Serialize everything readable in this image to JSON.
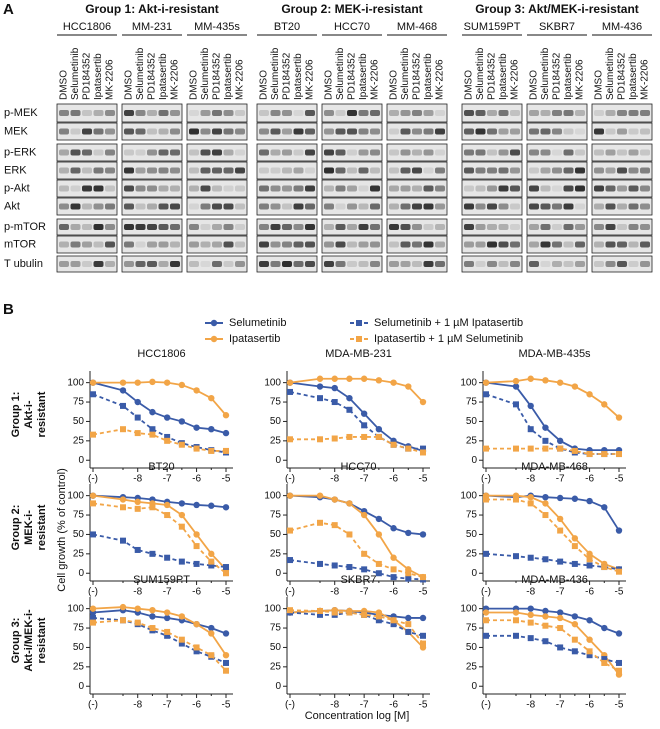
{
  "panel_a": {
    "label": "A",
    "groups": [
      {
        "title": "Group 1: Akt-i-resistant",
        "cell_lines": [
          "HCC1806",
          "MM-231",
          "MM-435s"
        ]
      },
      {
        "title": "Group 2: MEK-i-resistant",
        "cell_lines": [
          "BT20",
          "HCC70",
          "MM-468"
        ]
      },
      {
        "title": "Group 3: Akt/MEK-i-resistant",
        "cell_lines": [
          "SUM159PT",
          "SKBR7",
          "MM-436"
        ]
      }
    ],
    "lanes": [
      "DMSO",
      "Selumetinib",
      "PD184352",
      "Ipatasertib",
      "MK-2206"
    ],
    "proteins": [
      "p-MEK",
      "MEK",
      "p-ERK",
      "ERK",
      "p-Akt",
      "Akt",
      "p-mTOR",
      "mTOR",
      "T ubulin"
    ]
  },
  "panel_b": {
    "label": "B",
    "y_label": "Cell growth (% of control)",
    "x_label": "Concentration log [M]",
    "row_labels": [
      [
        "Group 1:",
        "Akt-i-",
        "resistant"
      ],
      [
        "Group 2:",
        "MEK-i-",
        "resistant"
      ],
      [
        "Group 3:",
        "Akt-i/MEK-i-",
        "resistant"
      ]
    ]
  },
  "chart_data": [
    {
      "type": "line",
      "title": "HCC1806",
      "categories": [
        "(-)",
        null,
        "-8",
        null,
        "-7",
        null,
        "-6",
        null,
        "-5"
      ],
      "ylim": [
        -10,
        115
      ],
      "yticks": [
        0,
        25,
        50,
        75,
        100
      ],
      "series": [
        {
          "name": "Selumetinib",
          "color": "#3a5ba8",
          "dashed": false,
          "marker": "circle",
          "values": [
            100,
            90,
            75,
            62,
            55,
            50,
            42,
            40,
            35
          ]
        },
        {
          "name": "Ipatasertib",
          "color": "#f2a547",
          "dashed": false,
          "marker": "circle",
          "values": [
            100,
            100,
            100,
            101,
            100,
            97,
            90,
            80,
            58
          ]
        },
        {
          "name": "Selumetinib + 1 µM Ipatasertib",
          "color": "#3a5ba8",
          "dashed": true,
          "marker": "square",
          "values": [
            85,
            70,
            55,
            40,
            30,
            22,
            17,
            13,
            10
          ]
        },
        {
          "name": "Ipatasertib + 1 µM Selumetinib",
          "color": "#f2a547",
          "dashed": true,
          "marker": "square",
          "values": [
            33,
            40,
            35,
            33,
            25,
            20,
            15,
            12,
            12
          ]
        }
      ]
    },
    {
      "type": "line",
      "title": "MDA-MB-231",
      "categories": [
        "(-)",
        null,
        "-8",
        null,
        "-7",
        null,
        "-6",
        null,
        "-5"
      ],
      "ylim": [
        -10,
        115
      ],
      "yticks": [
        0,
        25,
        50,
        75,
        100
      ],
      "series": [
        {
          "name": "Selumetinib",
          "color": "#3a5ba8",
          "dashed": false,
          "marker": "circle",
          "values": [
            100,
            95,
            93,
            80,
            60,
            40,
            25,
            18,
            12
          ]
        },
        {
          "name": "Ipatasertib",
          "color": "#f2a547",
          "dashed": false,
          "marker": "circle",
          "values": [
            100,
            105,
            105,
            105,
            105,
            103,
            100,
            95,
            75
          ]
        },
        {
          "name": "Selumetinib + 1 µM Ipatasertib",
          "color": "#3a5ba8",
          "dashed": true,
          "marker": "square",
          "values": [
            88,
            80,
            75,
            65,
            45,
            30,
            20,
            15,
            15
          ]
        },
        {
          "name": "Ipatasertib + 1 µM Selumetinib",
          "color": "#f2a547",
          "dashed": true,
          "marker": "square",
          "values": [
            27,
            27,
            28,
            30,
            30,
            30,
            20,
            15,
            10
          ]
        }
      ]
    },
    {
      "type": "line",
      "title": "MDA-MB-435s",
      "categories": [
        "(-)",
        null,
        "-8",
        null,
        "-7",
        null,
        "-6",
        null,
        "-5"
      ],
      "ylim": [
        -10,
        115
      ],
      "yticks": [
        0,
        25,
        50,
        75,
        100
      ],
      "series": [
        {
          "name": "Selumetinib",
          "color": "#3a5ba8",
          "dashed": false,
          "marker": "circle",
          "values": [
            100,
            95,
            70,
            42,
            25,
            15,
            13,
            13,
            13
          ]
        },
        {
          "name": "Ipatasertib",
          "color": "#f2a547",
          "dashed": false,
          "marker": "circle",
          "values": [
            100,
            102,
            105,
            103,
            100,
            95,
            85,
            72,
            55
          ]
        },
        {
          "name": "Selumetinib + 1 µM Ipatasertib",
          "color": "#3a5ba8",
          "dashed": true,
          "marker": "square",
          "values": [
            85,
            72,
            40,
            25,
            15,
            10,
            8,
            8,
            8
          ]
        },
        {
          "name": "Ipatasertib + 1 µM Selumetinib",
          "color": "#f2a547",
          "dashed": true,
          "marker": "square",
          "values": [
            15,
            15,
            15,
            15,
            15,
            12,
            8,
            8,
            8
          ]
        }
      ]
    },
    {
      "type": "line",
      "title": "BT20",
      "categories": [
        "(-)",
        null,
        "-8",
        null,
        "-7",
        null,
        "-6",
        null,
        "-5"
      ],
      "ylim": [
        -10,
        115
      ],
      "yticks": [
        0,
        25,
        50,
        75,
        100
      ],
      "series": [
        {
          "name": "Selumetinib",
          "color": "#3a5ba8",
          "dashed": false,
          "marker": "circle",
          "values": [
            100,
            98,
            97,
            95,
            92,
            90,
            88,
            87,
            85
          ]
        },
        {
          "name": "Ipatasertib",
          "color": "#f2a547",
          "dashed": false,
          "marker": "circle",
          "values": [
            100,
            95,
            92,
            90,
            88,
            75,
            50,
            25,
            5
          ]
        },
        {
          "name": "Selumetinib + 1 µM Ipatasertib",
          "color": "#3a5ba8",
          "dashed": true,
          "marker": "square",
          "values": [
            50,
            42,
            30,
            25,
            20,
            15,
            12,
            10,
            8
          ]
        },
        {
          "name": "Ipatasertib + 1 µM Selumetinib",
          "color": "#f2a547",
          "dashed": true,
          "marker": "square",
          "values": [
            90,
            85,
            83,
            85,
            75,
            60,
            35,
            15,
            0
          ]
        }
      ]
    },
    {
      "type": "line",
      "title": "HCC70",
      "categories": [
        "(-)",
        null,
        "-8",
        null,
        "-7",
        null,
        "-6",
        null,
        "-5"
      ],
      "ylim": [
        -10,
        115
      ],
      "yticks": [
        0,
        25,
        50,
        75,
        100
      ],
      "series": [
        {
          "name": "Selumetinib",
          "color": "#3a5ba8",
          "dashed": false,
          "marker": "circle",
          "values": [
            100,
            98,
            95,
            90,
            80,
            70,
            58,
            52,
            50
          ]
        },
        {
          "name": "Ipatasertib",
          "color": "#f2a547",
          "dashed": false,
          "marker": "circle",
          "values": [
            100,
            100,
            95,
            90,
            75,
            50,
            20,
            5,
            -5
          ]
        },
        {
          "name": "Selumetinib + 1 µM Ipatasertib",
          "color": "#3a5ba8",
          "dashed": true,
          "marker": "square",
          "values": [
            17,
            12,
            10,
            8,
            5,
            0,
            -5,
            -7,
            -8
          ]
        },
        {
          "name": "Ipatasertib + 1 µM Selumetinib",
          "color": "#f2a547",
          "dashed": true,
          "marker": "square",
          "values": [
            55,
            65,
            62,
            50,
            25,
            12,
            5,
            0,
            -5
          ]
        }
      ]
    },
    {
      "type": "line",
      "title": "MDA-MB-468",
      "categories": [
        "(-)",
        null,
        "-8",
        null,
        "-7",
        null,
        "-6",
        null,
        "-5"
      ],
      "ylim": [
        -10,
        115
      ],
      "yticks": [
        0,
        25,
        50,
        75,
        100
      ],
      "series": [
        {
          "name": "Selumetinib",
          "color": "#3a5ba8",
          "dashed": false,
          "marker": "circle",
          "values": [
            100,
            98,
            100,
            98,
            97,
            96,
            93,
            85,
            55
          ]
        },
        {
          "name": "Ipatasertib",
          "color": "#f2a547",
          "dashed": false,
          "marker": "circle",
          "values": [
            100,
            100,
            98,
            90,
            70,
            45,
            25,
            12,
            5
          ]
        },
        {
          "name": "Selumetinib + 1 µM Ipatasertib",
          "color": "#3a5ba8",
          "dashed": true,
          "marker": "square",
          "values": [
            25,
            22,
            20,
            18,
            15,
            12,
            10,
            8,
            5
          ]
        },
        {
          "name": "Ipatasertib + 1 µM Selumetinib",
          "color": "#f2a547",
          "dashed": true,
          "marker": "square",
          "values": [
            95,
            95,
            90,
            75,
            55,
            35,
            18,
            8,
            2
          ]
        }
      ]
    },
    {
      "type": "line",
      "title": "SUM159PT",
      "categories": [
        "(-)",
        null,
        "-8",
        null,
        "-7",
        null,
        "-6",
        null,
        "-5"
      ],
      "ylim": [
        -10,
        115
      ],
      "yticks": [
        0,
        25,
        50,
        75,
        100
      ],
      "series": [
        {
          "name": "Selumetinib",
          "color": "#3a5ba8",
          "dashed": false,
          "marker": "circle",
          "values": [
            95,
            98,
            95,
            90,
            88,
            85,
            80,
            75,
            68
          ]
        },
        {
          "name": "Ipatasertib",
          "color": "#f2a547",
          "dashed": false,
          "marker": "circle",
          "values": [
            100,
            102,
            100,
            98,
            95,
            90,
            80,
            68,
            40
          ]
        },
        {
          "name": "Selumetinib + 1 µM Ipatasertib",
          "color": "#3a5ba8",
          "dashed": true,
          "marker": "square",
          "values": [
            88,
            85,
            80,
            72,
            65,
            55,
            45,
            38,
            30
          ]
        },
        {
          "name": "Ipatasertib + 1 µM Selumetinib",
          "color": "#f2a547",
          "dashed": true,
          "marker": "square",
          "values": [
            82,
            85,
            82,
            75,
            70,
            60,
            50,
            40,
            20
          ]
        }
      ]
    },
    {
      "type": "line",
      "title": "SKBR7",
      "categories": [
        "(-)",
        null,
        "-8",
        null,
        "-7",
        null,
        "-6",
        null,
        "-5"
      ],
      "ylim": [
        -10,
        115
      ],
      "yticks": [
        0,
        25,
        50,
        75,
        100
      ],
      "series": [
        {
          "name": "Selumetinib",
          "color": "#3a5ba8",
          "dashed": false,
          "marker": "circle",
          "values": [
            95,
            97,
            98,
            97,
            95,
            92,
            90,
            88,
            88
          ]
        },
        {
          "name": "Ipatasertib",
          "color": "#f2a547",
          "dashed": false,
          "marker": "circle",
          "values": [
            95,
            97,
            98,
            97,
            97,
            95,
            85,
            70,
            50
          ]
        },
        {
          "name": "Selumetinib + 1 µM Ipatasertib",
          "color": "#3a5ba8",
          "dashed": true,
          "marker": "square",
          "values": [
            95,
            92,
            92,
            95,
            92,
            85,
            80,
            70,
            65
          ]
        },
        {
          "name": "Ipatasertib + 1 µM Selumetinib",
          "color": "#f2a547",
          "dashed": true,
          "marker": "square",
          "values": [
            98,
            97,
            95,
            95,
            92,
            90,
            85,
            80,
            55
          ]
        }
      ]
    },
    {
      "type": "line",
      "title": "MDA-MB-436",
      "categories": [
        "(-)",
        null,
        "-8",
        null,
        "-7",
        null,
        "-6",
        null,
        "-5"
      ],
      "ylim": [
        -10,
        115
      ],
      "yticks": [
        0,
        25,
        50,
        75,
        100
      ],
      "series": [
        {
          "name": "Selumetinib",
          "color": "#3a5ba8",
          "dashed": false,
          "marker": "circle",
          "values": [
            100,
            100,
            100,
            97,
            95,
            90,
            85,
            75,
            68
          ]
        },
        {
          "name": "Ipatasertib",
          "color": "#f2a547",
          "dashed": false,
          "marker": "circle",
          "values": [
            95,
            95,
            92,
            90,
            88,
            80,
            60,
            40,
            15
          ]
        },
        {
          "name": "Selumetinib + 1 µM Ipatasertib",
          "color": "#3a5ba8",
          "dashed": true,
          "marker": "square",
          "values": [
            65,
            65,
            62,
            58,
            50,
            45,
            40,
            35,
            30
          ]
        },
        {
          "name": "Ipatasertib + 1 µM Selumetinib",
          "color": "#f2a547",
          "dashed": true,
          "marker": "square",
          "values": [
            85,
            85,
            82,
            78,
            75,
            60,
            45,
            30,
            20
          ]
        }
      ]
    }
  ]
}
